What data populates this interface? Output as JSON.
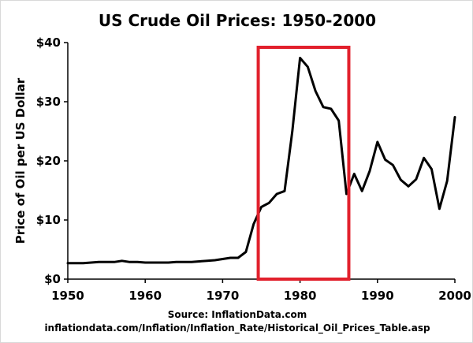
{
  "chart_data": {
    "type": "line",
    "title": "US Crude Oil Prices: 1950-2000",
    "ylabel": "Price of Oil per US Dollar",
    "xlabel": "",
    "source_line1": "Source: InflationData.com",
    "source_line2": "inflationdata.com/Inflation/Inflation_Rate/Historical_Oil_Prices_Table.asp",
    "xlim": [
      1950,
      2000
    ],
    "ylim": [
      0,
      40
    ],
    "x_ticks": [
      1950,
      1960,
      1970,
      1980,
      1990,
      2000
    ],
    "x_tick_labels": [
      "1950",
      "1960",
      "1970",
      "1980",
      "1990",
      "2000"
    ],
    "y_ticks": [
      0,
      10,
      20,
      30,
      40
    ],
    "y_tick_labels": [
      "$0",
      "$10",
      "$20",
      "$30",
      "$40"
    ],
    "grid": false,
    "line_color": "#000000",
    "highlight_color": "#e2202c",
    "highlight_range": {
      "x": [
        1974.6,
        1986.3
      ],
      "y": [
        0,
        39.2
      ]
    },
    "series": [
      {
        "x": [
          1950,
          1951,
          1952,
          1953,
          1954,
          1955,
          1956,
          1957,
          1958,
          1959,
          1960,
          1961,
          1962,
          1963,
          1964,
          1965,
          1966,
          1967,
          1968,
          1969,
          1970,
          1971,
          1972,
          1973,
          1974,
          1975,
          1976,
          1977,
          1978,
          1979,
          1980,
          1981,
          1982,
          1983,
          1984,
          1985,
          1986,
          1987,
          1988,
          1989,
          1990,
          1991,
          1992,
          1993,
          1994,
          1995,
          1996,
          1997,
          1998,
          1999,
          2000
        ],
        "values": [
          2.7,
          2.7,
          2.7,
          2.8,
          2.9,
          2.9,
          2.9,
          3.1,
          2.9,
          2.9,
          2.8,
          2.8,
          2.8,
          2.8,
          2.9,
          2.9,
          2.9,
          3.0,
          3.1,
          3.2,
          3.4,
          3.6,
          3.6,
          4.6,
          9.3,
          12.2,
          12.9,
          14.4,
          14.9,
          25.0,
          37.4,
          35.9,
          31.8,
          29.1,
          28.8,
          26.8,
          14.4,
          17.8,
          14.9,
          18.3,
          23.2,
          20.2,
          19.3,
          16.8,
          15.7,
          16.9,
          20.5,
          18.6,
          11.9,
          16.6,
          27.4
        ]
      }
    ]
  }
}
